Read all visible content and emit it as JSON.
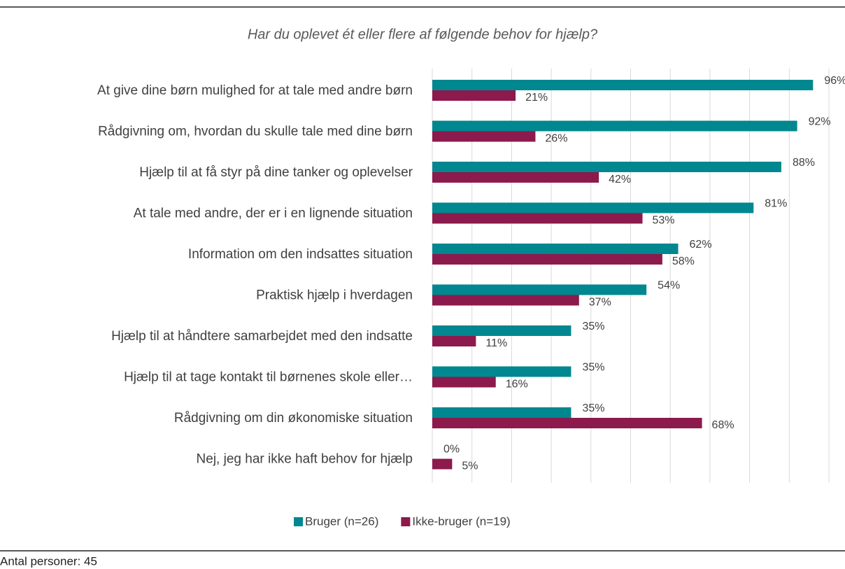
{
  "chart_data": {
    "type": "bar",
    "orientation": "horizontal",
    "title": "Har du oplevet ét eller flere af følgende behov for hjælp?",
    "categories": [
      "At give dine børn mulighed for at tale med andre børn",
      "Rådgivning om, hvordan du skulle tale med dine børn",
      "Hjælp til at få styr på dine tanker og oplevelser",
      "At tale med andre, der er i en lignende situation",
      "Information om den indsattes situation",
      "Praktisk hjælp i hverdagen",
      "Hjælp til at håndtere samarbejdet med den indsatte",
      "Hjælp til at tage kontakt til børnenes skole eller…",
      "Rådgivning om din økonomiske situation",
      "Nej, jeg har ikke haft behov for hjælp"
    ],
    "series": [
      {
        "name": "Bruger (n=26)",
        "color": "#00878f",
        "values": [
          96,
          92,
          88,
          81,
          62,
          54,
          35,
          35,
          35,
          0
        ],
        "value_labels": [
          "96%",
          "92%",
          "88%",
          "81%",
          "62%",
          "54%",
          "35%",
          "35%",
          "35%",
          "0%"
        ]
      },
      {
        "name": "Ikke-bruger (n=19)",
        "color": "#8c1a4c",
        "values": [
          21,
          26,
          42,
          53,
          58,
          37,
          11,
          16,
          68,
          5
        ],
        "value_labels": [
          "21%",
          "26%",
          "42%",
          "53%",
          "58%",
          "37%",
          "11%",
          "16%",
          "68%",
          "5%"
        ]
      }
    ],
    "xlim": [
      0,
      100
    ],
    "xticks": [
      0,
      10,
      20,
      30,
      40,
      50,
      60,
      70,
      80,
      90,
      100
    ],
    "grid": true,
    "legend": "bottom"
  },
  "footer": "Antal personer: 45"
}
